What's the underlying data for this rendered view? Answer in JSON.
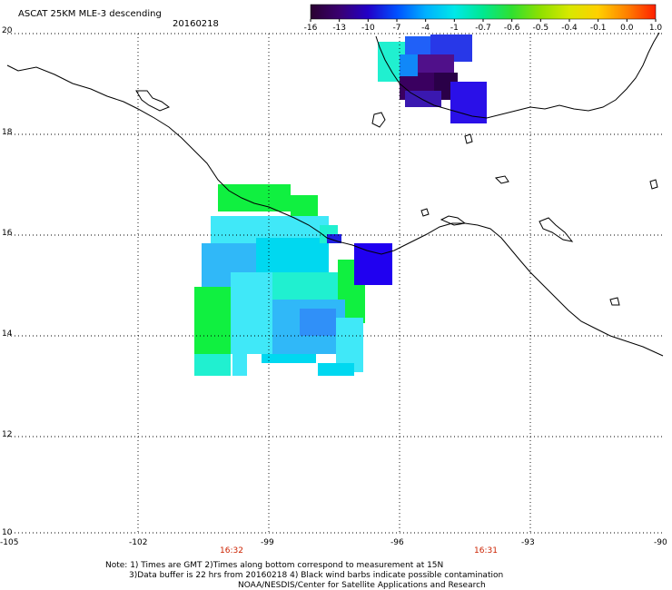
{
  "header": {
    "title": "ASCAT 25KM MLE-3 descending",
    "date": "20160218"
  },
  "colorbar": {
    "labels": [
      "-16",
      "-13",
      "-10",
      "-7",
      "-4",
      "-1",
      "-0.7",
      "-0.6",
      "-0.5",
      "-0.4",
      "-0.1",
      "0.0",
      "1.0"
    ],
    "colors": [
      "#2a0030",
      "#3a0070",
      "#2200c8",
      "#0050ff",
      "#00b0ff",
      "#00e8e8",
      "#00e890",
      "#30e030",
      "#90e000",
      "#d8e800",
      "#ffd000",
      "#ff8000",
      "#ff2000"
    ]
  },
  "axes": {
    "lat_labels": [
      "20",
      "18",
      "16",
      "14",
      "12",
      "10"
    ],
    "lon_labels": [
      "-105",
      "-102",
      "-99",
      "-96",
      "-93",
      "-90"
    ]
  },
  "times": [
    "16:32",
    "16:31"
  ],
  "notes": {
    "line1": "Note: 1) Times are GMT 2)Times along bottom correspond to measurement at 15N",
    "line2": "3)Data buffer is 22 hrs from 20160218 4) Black wind barbs indicate possible contamination",
    "line3": "NOAA/NESDIS/Center for Satellite Applications and Research"
  }
}
